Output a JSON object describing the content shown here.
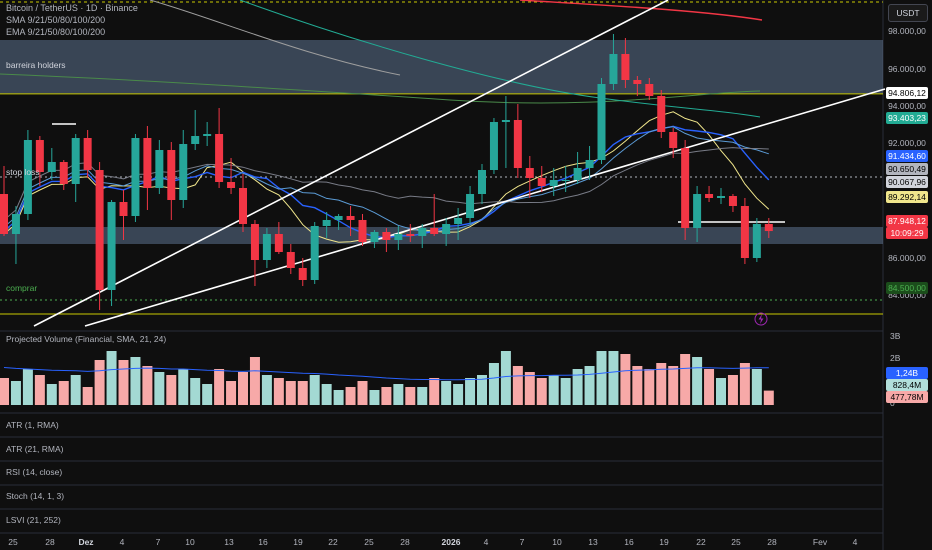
{
  "header": {
    "title": "Bitcoin / TetherUS · 1D · Binance",
    "sma_label": "SMA 9/21/50/80/100/200",
    "ema_label": "EMA 9/21/50/80/100/200",
    "currency_button": "USDT"
  },
  "zones": {
    "resistance_label": "barreira holders",
    "stop_label": "stop loss",
    "buy_label": "comprar"
  },
  "price_axis": [
    "98.000,00",
    "96.000,00",
    "94.000,00",
    "92.000,00",
    "86.000,00",
    "84.000,00"
  ],
  "price_tags": [
    {
      "id": "tag-94806",
      "text": "94.806,12",
      "bg": "#ffffff",
      "fg": "#000000"
    },
    {
      "id": "tag-93403",
      "text": "93.403,23",
      "bg": "#22ab94",
      "fg": "#ffffff"
    },
    {
      "id": "tag-91434",
      "text": "91.434,60",
      "bg": "#2962ff",
      "fg": "#ffffff"
    },
    {
      "id": "tag-90650",
      "text": "90.650,49",
      "bg": "#b2b5be",
      "fg": "#000000"
    },
    {
      "id": "tag-90067",
      "text": "90.067,96",
      "bg": "#d1d4dc",
      "fg": "#000000"
    },
    {
      "id": "tag-89292",
      "text": "89.292,14",
      "bg": "#f0e68c",
      "fg": "#000000"
    },
    {
      "id": "tag-87948",
      "text": "87.948,12",
      "bg": "#f23645",
      "fg": "#ffffff"
    },
    {
      "id": "tag-countdown",
      "text": "10:09:29",
      "bg": "#f23645",
      "fg": "#ffffff"
    },
    {
      "id": "tag-84500",
      "text": "84.500,00",
      "bg": "#1b4d1b",
      "fg": "#4caf50"
    }
  ],
  "volume_axis": [
    "3B",
    "2B",
    "0"
  ],
  "volume_tags": [
    {
      "id": "vtag-124",
      "text": "1,24B",
      "bg": "#2962ff",
      "fg": "#ffffff"
    },
    {
      "id": "vtag-828",
      "text": "828,4M",
      "bg": "#b2dfdb",
      "fg": "#000000"
    },
    {
      "id": "vtag-477",
      "text": "477,78M",
      "bg": "#f7a9a8",
      "fg": "#000000"
    }
  ],
  "panes": [
    "Projected Volume (Financial, SMA, 21, 24)",
    "ATR (1, RMA)",
    "ATR (21, RMA)",
    "RSI (14, close)",
    "Stoch (14, 1, 3)",
    "LSVI (21, 252)"
  ],
  "x_axis": [
    {
      "label": "25"
    },
    {
      "label": "28"
    },
    {
      "label": "Dez",
      "bold": true
    },
    {
      "label": "4"
    },
    {
      "label": "7"
    },
    {
      "label": "10"
    },
    {
      "label": "13"
    },
    {
      "label": "16"
    },
    {
      "label": "19"
    },
    {
      "label": "22"
    },
    {
      "label": "25"
    },
    {
      "label": "28"
    },
    {
      "label": "2026",
      "bold": true
    },
    {
      "label": "4"
    },
    {
      "label": "7"
    },
    {
      "label": "10"
    },
    {
      "label": "13"
    },
    {
      "label": "16"
    },
    {
      "label": "19"
    },
    {
      "label": "22"
    },
    {
      "label": "25"
    },
    {
      "label": "28"
    },
    {
      "label": "Fev",
      "bold": false
    },
    {
      "label": "4"
    }
  ],
  "colors": {
    "up": "#26a69a",
    "down": "#f23645",
    "bg": "#0f0f0f",
    "zone": "#5d7290"
  },
  "chart_data": {
    "type": "candlestick",
    "title": "Bitcoin / TetherUS · 1D · Binance",
    "ylim": [
      83000,
      99500
    ],
    "levels": {
      "resistance_zone": [
        94806,
        97500
      ],
      "support_zone": [
        87300,
        88150
      ],
      "stop_loss": 90650,
      "buy": 84500,
      "low_line": 83800,
      "yellow_line": 94806
    },
    "candles": [
      {
        "o": 89800,
        "h": 91200,
        "l": 87700,
        "c": 87800
      },
      {
        "o": 87800,
        "h": 89200,
        "l": 86300,
        "c": 88800
      },
      {
        "o": 88800,
        "h": 93000,
        "l": 88500,
        "c": 92500
      },
      {
        "o": 92500,
        "h": 92700,
        "l": 90200,
        "c": 90900
      },
      {
        "o": 90900,
        "h": 92100,
        "l": 90500,
        "c": 91400
      },
      {
        "o": 91400,
        "h": 91500,
        "l": 90000,
        "c": 90300
      },
      {
        "o": 90300,
        "h": 92800,
        "l": 89400,
        "c": 92600
      },
      {
        "o": 92600,
        "h": 93000,
        "l": 90600,
        "c": 91000
      },
      {
        "o": 91000,
        "h": 91400,
        "l": 84000,
        "c": 85000
      },
      {
        "o": 85000,
        "h": 89500,
        "l": 84200,
        "c": 89400
      },
      {
        "o": 89400,
        "h": 90000,
        "l": 87500,
        "c": 88700
      },
      {
        "o": 88700,
        "h": 92800,
        "l": 88400,
        "c": 92600
      },
      {
        "o": 92600,
        "h": 93200,
        "l": 89000,
        "c": 90100
      },
      {
        "o": 90100,
        "h": 92500,
        "l": 89800,
        "c": 92000
      },
      {
        "o": 92000,
        "h": 92400,
        "l": 88500,
        "c": 89500
      },
      {
        "o": 89500,
        "h": 93000,
        "l": 89100,
        "c": 92300
      },
      {
        "o": 92300,
        "h": 94000,
        "l": 92000,
        "c": 92700
      },
      {
        "o": 92700,
        "h": 93400,
        "l": 92200,
        "c": 92800
      },
      {
        "o": 92800,
        "h": 94100,
        "l": 90100,
        "c": 90400
      },
      {
        "o": 90400,
        "h": 91600,
        "l": 89800,
        "c": 90100
      },
      {
        "o": 90100,
        "h": 90800,
        "l": 87900,
        "c": 88300
      },
      {
        "o": 88300,
        "h": 88500,
        "l": 85200,
        "c": 86500
      },
      {
        "o": 86500,
        "h": 88100,
        "l": 86100,
        "c": 87800
      },
      {
        "o": 87800,
        "h": 88400,
        "l": 86800,
        "c": 86900
      },
      {
        "o": 86900,
        "h": 87300,
        "l": 85800,
        "c": 86100
      },
      {
        "o": 86100,
        "h": 86600,
        "l": 85200,
        "c": 85500
      },
      {
        "o": 85500,
        "h": 88400,
        "l": 85300,
        "c": 88200
      },
      {
        "o": 88200,
        "h": 88900,
        "l": 87600,
        "c": 88500
      },
      {
        "o": 88500,
        "h": 88800,
        "l": 88000,
        "c": 88700
      },
      {
        "o": 88700,
        "h": 89200,
        "l": 87700,
        "c": 88500
      },
      {
        "o": 88500,
        "h": 88800,
        "l": 87200,
        "c": 87400
      },
      {
        "o": 87400,
        "h": 88000,
        "l": 87100,
        "c": 87900
      },
      {
        "o": 87900,
        "h": 88100,
        "l": 86900,
        "c": 87500
      },
      {
        "o": 87500,
        "h": 88200,
        "l": 87000,
        "c": 87800
      },
      {
        "o": 87800,
        "h": 88300,
        "l": 87400,
        "c": 87700
      },
      {
        "o": 87700,
        "h": 88300,
        "l": 87100,
        "c": 88100
      },
      {
        "o": 88100,
        "h": 89800,
        "l": 87700,
        "c": 87800
      },
      {
        "o": 87800,
        "h": 88600,
        "l": 87200,
        "c": 88300
      },
      {
        "o": 88300,
        "h": 89100,
        "l": 87500,
        "c": 88600
      },
      {
        "o": 88600,
        "h": 90200,
        "l": 88300,
        "c": 89800
      },
      {
        "o": 89800,
        "h": 91300,
        "l": 89300,
        "c": 91000
      },
      {
        "o": 91000,
        "h": 93600,
        "l": 90800,
        "c": 93400
      },
      {
        "o": 93400,
        "h": 94700,
        "l": 91100,
        "c": 93500
      },
      {
        "o": 93500,
        "h": 94300,
        "l": 90600,
        "c": 91100
      },
      {
        "o": 91100,
        "h": 91700,
        "l": 89600,
        "c": 90600
      },
      {
        "o": 90600,
        "h": 91200,
        "l": 89900,
        "c": 90200
      },
      {
        "o": 90200,
        "h": 91100,
        "l": 89700,
        "c": 90500
      },
      {
        "o": 90500,
        "h": 91200,
        "l": 89900,
        "c": 90500
      },
      {
        "o": 90500,
        "h": 91900,
        "l": 90300,
        "c": 91100
      },
      {
        "o": 91100,
        "h": 92200,
        "l": 90500,
        "c": 91500
      },
      {
        "o": 91500,
        "h": 95600,
        "l": 91300,
        "c": 95300
      },
      {
        "o": 95300,
        "h": 97800,
        "l": 95000,
        "c": 96800
      },
      {
        "o": 96800,
        "h": 97600,
        "l": 95100,
        "c": 95500
      },
      {
        "o": 95500,
        "h": 95700,
        "l": 94700,
        "c": 95300
      },
      {
        "o": 95300,
        "h": 95600,
        "l": 94500,
        "c": 94700
      },
      {
        "o": 94700,
        "h": 95000,
        "l": 92600,
        "c": 92900
      },
      {
        "o": 92900,
        "h": 93100,
        "l": 91600,
        "c": 92100
      },
      {
        "o": 92100,
        "h": 92500,
        "l": 87500,
        "c": 88100
      },
      {
        "o": 88100,
        "h": 90200,
        "l": 87400,
        "c": 89800
      },
      {
        "o": 89800,
        "h": 90200,
        "l": 89400,
        "c": 89600
      },
      {
        "o": 89600,
        "h": 90100,
        "l": 89300,
        "c": 89700
      },
      {
        "o": 89700,
        "h": 89800,
        "l": 88900,
        "c": 89200
      },
      {
        "o": 89200,
        "h": 89600,
        "l": 86300,
        "c": 86600
      },
      {
        "o": 86600,
        "h": 88600,
        "l": 86400,
        "c": 88300
      },
      {
        "o": 88300,
        "h": 88600,
        "l": 87600,
        "c": 87948
      }
    ],
    "volume_b": [
      0.9,
      0.8,
      1.2,
      1.0,
      0.7,
      0.8,
      1.0,
      0.6,
      1.5,
      1.8,
      1.5,
      1.6,
      1.3,
      1.1,
      1.0,
      1.2,
      0.9,
      0.7,
      1.2,
      0.8,
      1.1,
      1.6,
      1.0,
      0.9,
      0.8,
      0.8,
      1.0,
      0.7,
      0.5,
      0.6,
      0.8,
      0.5,
      0.6,
      0.7,
      0.6,
      0.6,
      0.9,
      0.8,
      0.7,
      0.9,
      1.0,
      1.4,
      1.8,
      1.3,
      1.1,
      0.9,
      1.0,
      0.9,
      1.2,
      1.3,
      1.8,
      1.8,
      1.7,
      1.3,
      1.2,
      1.4,
      1.3,
      1.7,
      1.6,
      1.2,
      0.9,
      1.0,
      1.4,
      1.2,
      0.48
    ],
    "volume_sma_b": [
      1.25,
      1.22,
      1.2,
      1.18,
      1.16,
      1.15,
      1.14,
      1.12,
      1.14,
      1.18,
      1.2,
      1.22,
      1.23,
      1.22,
      1.2,
      1.2,
      1.18,
      1.16,
      1.15,
      1.13,
      1.12,
      1.14,
      1.12,
      1.1,
      1.08,
      1.06,
      1.05,
      1.03,
      1.0,
      0.98,
      0.96,
      0.93,
      0.9,
      0.88,
      0.86,
      0.85,
      0.85,
      0.84,
      0.84,
      0.85,
      0.86,
      0.9,
      0.95,
      0.97,
      0.98,
      0.98,
      0.99,
      0.99,
      1.0,
      1.02,
      1.06,
      1.1,
      1.14,
      1.16,
      1.17,
      1.19,
      1.2,
      1.22,
      1.24,
      1.24,
      1.23,
      1.22,
      1.23,
      1.24,
      1.24
    ]
  }
}
